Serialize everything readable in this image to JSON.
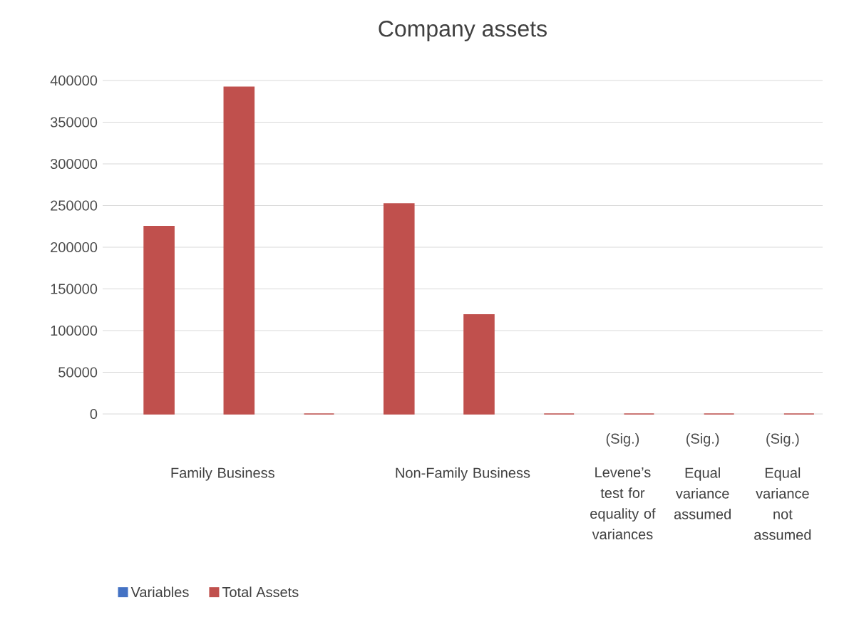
{
  "chart_data": {
    "type": "bar",
    "title": "Company assets",
    "categories": [
      null,
      null,
      null,
      null,
      null,
      null,
      "(Sig.)",
      "(Sig.)",
      "(Sig.)"
    ],
    "series": [
      {
        "name": "Variables",
        "color": "#4472c4",
        "values": [
          null,
          null,
          null,
          null,
          null,
          null,
          null,
          null,
          null
        ]
      },
      {
        "name": "Total Assets",
        "color": "#c0504d",
        "values": [
          225000,
          392000,
          0,
          252000,
          119000,
          0,
          0,
          0,
          0
        ]
      }
    ],
    "annotations": [
      "Family Business",
      "Non-Family Business",
      "Levene’s test for equality of variances",
      "Equal variance assumed",
      "Equal variance not assumed"
    ],
    "ylim": [
      0,
      400000
    ],
    "yticks": [
      0,
      50000,
      100000,
      150000,
      200000,
      250000,
      300000,
      350000,
      400000
    ],
    "grid": "y",
    "legend": "bottom"
  }
}
